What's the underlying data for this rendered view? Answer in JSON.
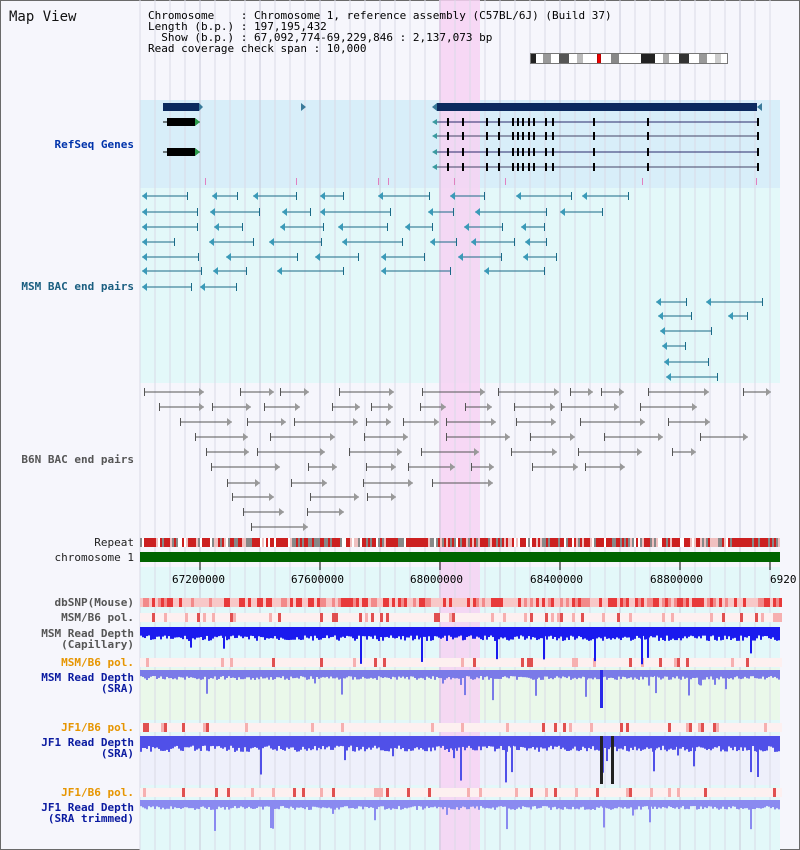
{
  "title": "Map View",
  "meta": {
    "line1": "Chromosome    : Chromosome 1, reference assembly (C57BL/6J) (Build 37)",
    "line2": "Length (b.p.) : 197,195,432",
    "line3": "  Show (b.p.) : 67,092,774-69,229,846 : 2,137,073 bp",
    "line4": "Read coverage check span : 10,000"
  },
  "tracks": {
    "refseq": "RefSeq Genes",
    "msm_bac": "MSM BAC end pairs",
    "b6n_bac": "B6N BAC end pairs",
    "repeat": "Repeat",
    "chrom": "chromosome 1",
    "dbsnp": "dbSNP(Mouse)",
    "msm_pol1": "MSM/B6 pol.",
    "msm_depth_cap": "MSM Read Depth\n(Capillary)",
    "msm_pol2": "MSM/B6 pol.",
    "msm_depth_sra": "MSM Read Depth\n(SRA)",
    "jf1_pol1": "JF1/B6 pol.",
    "jf1_depth_sra": "JF1 Read Depth\n(SRA)",
    "jf1_pol2": "JF1/B6 pol.",
    "jf1_depth_trim": "JF1 Read Depth\n(SRA trimmed)"
  },
  "axis": [
    "67200000",
    "67600000",
    "68000000",
    "68400000",
    "68800000",
    "6920"
  ],
  "colors": {
    "refseq_bg": "#d9eef8",
    "msm_bg": "#e2f7f8",
    "highlight": "#f6d6f2",
    "chrom_bar": "#006400",
    "depth_dark": "#1a1aff",
    "depth_light": "#8080f0"
  }
}
